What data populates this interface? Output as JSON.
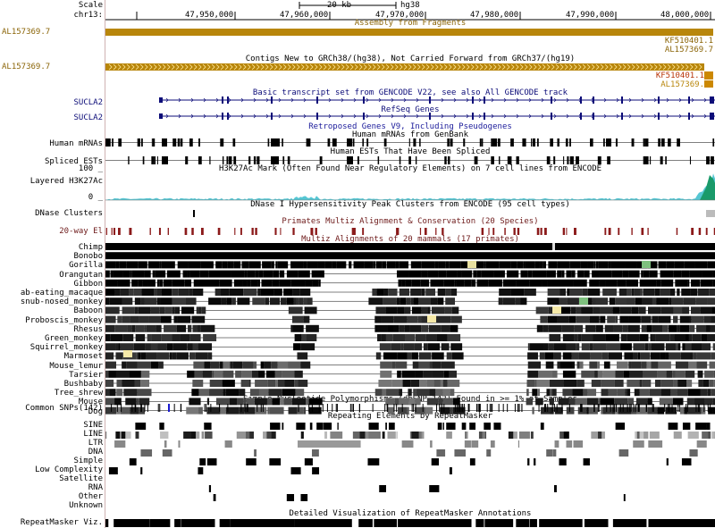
{
  "ruler": {
    "scale_label": "Scale",
    "chrom_label": "chr13:",
    "scale_bar_text": "20 kb",
    "assembly": "hg38",
    "ticks": [
      "47,950,000",
      "47,960,000",
      "47,970,000",
      "47,980,000",
      "47,990,000",
      "48,000,000"
    ]
  },
  "track_titles": {
    "assembly": "Assembly from Fragments",
    "contigs": "Contigs New to GRCh38/(hg38), Not Carried Forward from GRCh37/(hg19)",
    "gencode": "Basic transcript set from GENCODE V22, see also All GENCODE track",
    "refseq": "RefSeq Genes",
    "retro": "Retroposed Genes V9, Including Pseudogenes",
    "mrna": "Human mRNAs from GenBank",
    "est": "Human ESTs That Have Been Spliced",
    "h3k27ac": "H3K27Ac Mark (Often Found Near Regulatory Elements) on 7 cell lines from ENCODE",
    "dnase": "DNase I Hypersensitivity Peak Clusters from ENCODE (95 cell types)",
    "cons": "Primates Multiz Alignment & Conservation (20 Species)",
    "multiz": "Multiz Alignments of 20 mammals (17 primates)",
    "snp": "Simple Nucleotide Polymorphisms (dbSNP 142) Found in >= 1% of Samples",
    "rmsk": "Repeating Elements by RepeatMasker",
    "rmskviz": "Detailed Visualization of RepeatMasker Annotations"
  },
  "item_labels": {
    "asm_left": "AL157369.7",
    "asm_right_1": "KF510401.1",
    "asm_right_2": "AL157369.7",
    "contig_left": "AL157369.7",
    "contig_right_1": "KF510401.1",
    "contig_right_2": "AL157369.",
    "gencode_gene": "SUCLA2",
    "refseq_gene": "SUCLA2"
  },
  "left_labels": {
    "mrna": "Human mRNAs",
    "est": "Spliced ESTs",
    "h3k_max": "100 _",
    "h3k": "Layered H3K27Ac",
    "h3k_min": "0 _",
    "dnase": "DNase Clusters",
    "cons": "20-way El",
    "snp": "Common SNPs(142)",
    "rmsk_viz": "RepeatMasker Viz."
  },
  "species": [
    "Chimp",
    "Bonobo",
    "Gorilla",
    "Orangutan",
    "Gibbon",
    "ab-eating_macaque",
    "snub-nosed_monkey",
    "Baboon",
    "Proboscis_monkey",
    "Rhesus",
    "Green_monkey",
    "Squirrel_monkey",
    "Marmoset",
    "Mouse_lemur",
    "Tarsier",
    "Bushbaby",
    "Tree_shrew",
    "Mouse",
    "Dog"
  ],
  "repeat_classes": [
    "SINE",
    "LINE",
    "LTR",
    "DNA",
    "Simple",
    "Low Complexity",
    "Satellite",
    "RNA",
    "Other",
    "Unknown"
  ],
  "colors": {
    "assembly_brown": "#b8860b",
    "gene_blue": "#0c0c78",
    "conservation_red": "#8b1a1a",
    "h3k_cyan": "#2ab8c8",
    "divider": "#cfb3b3"
  }
}
